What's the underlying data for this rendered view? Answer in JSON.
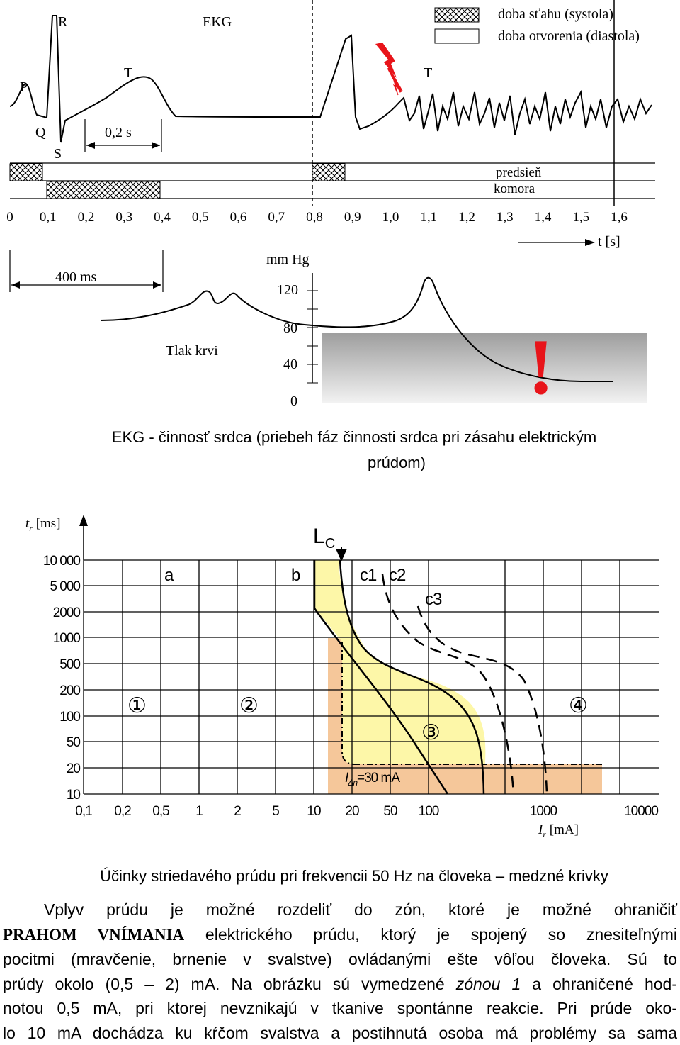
{
  "ekg": {
    "labels": {
      "R": "R",
      "EKG": "EKG",
      "P": "P",
      "T1": "T",
      "T2": "T",
      "Q": "Q",
      "S": "S",
      "interval": "0,2 s"
    },
    "legend": {
      "systole": "doba sťahu (systola)",
      "diastole": "doba otvorenia (diastola)"
    },
    "tracks": {
      "atrium": "predsieň",
      "ventricle": "komora"
    },
    "time_ticks": [
      "0",
      "0,1",
      "0,2",
      "0,3",
      "0,4",
      "0,5",
      "0,6",
      "0,7",
      "0,8",
      "0,9",
      "1,0",
      "1,1",
      "1,2",
      "1,3",
      "1,4",
      "1,5",
      "1,6"
    ],
    "time_unit": "t [s]",
    "duration": "400 ms",
    "pressure": {
      "unit": "mm Hg",
      "label": "Tlak krvi",
      "ticks": [
        "120",
        "80",
        "40",
        "0"
      ],
      "warning": "!"
    },
    "caption_line1": "EKG - činnosť srdca (priebeh fáz činnosti srdca pri zásahu elektrickým",
    "caption_line2": "prúdom)"
  },
  "chart_data": {
    "type": "line",
    "y_axis_label": "t",
    "y_axis_sub": "r",
    "y_axis_unit": "[ms]",
    "y_ticks": [
      "10 000",
      "5 000",
      "2000",
      "1000",
      "500",
      "200",
      "100",
      "50",
      "20",
      "10"
    ],
    "x_ticks": [
      "0,1",
      "0,2",
      "0,5",
      "1",
      "2",
      "5",
      "10",
      "20",
      "50",
      "100",
      "1000",
      "10000"
    ],
    "x_axis_label": "I",
    "x_axis_sub": "r",
    "x_axis_unit": "[mA]",
    "curves": [
      "a",
      "b",
      "c1",
      "c2",
      "c3"
    ],
    "lc_label": "L",
    "lc_sub": "C",
    "zones": [
      "①",
      "②",
      "③",
      "④"
    ],
    "rcd_label": "I",
    "rcd_sub": "Δn",
    "rcd_value": "=30 mA",
    "series": [
      {
        "name": "a",
        "x": [
          0.5,
          0.5
        ],
        "y": [
          10,
          10000
        ]
      },
      {
        "name": "b",
        "x": [
          10,
          15,
          30,
          60,
          100
        ],
        "y": [
          10000,
          2000,
          500,
          100,
          10
        ]
      },
      {
        "name": "c1",
        "x": [
          20,
          20,
          30,
          70,
          200,
          300,
          400
        ],
        "y": [
          10000,
          2000,
          500,
          200,
          100,
          50,
          10
        ]
      },
      {
        "name": "c2",
        "x": [
          40,
          50,
          100,
          300,
          500,
          600
        ],
        "y": [
          10000,
          2000,
          500,
          200,
          100,
          10
        ]
      },
      {
        "name": "c3",
        "x": [
          50,
          80,
          150,
          300,
          600,
          700,
          1000
        ],
        "y": [
          5000,
          2000,
          1000,
          800,
          300,
          100,
          10
        ]
      },
      {
        "name": "L_C",
        "x": [
          20,
          20
        ],
        "y": [
          10000,
          20
        ]
      }
    ],
    "caption": "Účinky striedavého prúdu pri frekvencii 50 Hz na človeka – medzné krivky"
  },
  "paragraph": {
    "lines": [
      "Vplyv prúdu je možné rozdeliť do zón, ktoré je možné ohraničiť",
      "PRAHOM VNÍMANIA elektrického prúdu, ktorý je spojený so znesiteľnými",
      "pocitmi (mravčenie, brnenie v svalstve) ovládanými ešte vôľou človeka. Sú to",
      "prúdy okolo (0,5 – 2) mA. Na obrázku sú vymedzené zónou 1 a ohraničené hod-",
      "notou 0,5 mA, pri ktorej nevznikajú v tkanive spontánne reakcie. Pri prúde oko-",
      "lo 10 mA dochádza ku kŕčom svalstva a postihnutá osoba má problémy sa sama"
    ],
    "bold_term": "PRAHOM VNÍMANIA",
    "italic_term": "zónou 1"
  },
  "colors": {
    "yellow_zone": "#fdf7a8",
    "orange_zone": "#f5c79a",
    "warning": "#e8141a",
    "shade": "#bdbdbd"
  }
}
